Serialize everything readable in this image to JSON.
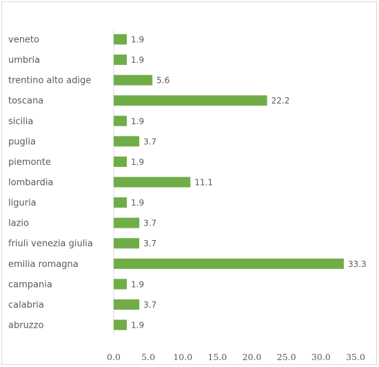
{
  "chart_data": {
    "type": "bar",
    "orientation": "horizontal",
    "title": "",
    "xlabel": "",
    "ylabel": "",
    "categories": [
      "veneto",
      "umbria",
      "trentino alto adige",
      "toscana",
      "sicilia",
      "puglia",
      "piemonte",
      "lombardia",
      "liguria",
      "lazio",
      "friuli venezia giulia",
      "emilia romagna",
      "campania",
      "calabria",
      "abruzzo"
    ],
    "values": [
      1.9,
      1.9,
      5.6,
      22.2,
      1.9,
      3.7,
      1.9,
      11.1,
      1.9,
      3.7,
      3.7,
      33.3,
      1.9,
      3.7,
      1.9
    ],
    "value_labels": [
      "1.9",
      "1.9",
      "5.6",
      "22.2",
      "1.9",
      "3.7",
      "1.9",
      "11.1",
      "1.9",
      "3.7",
      "3.7",
      "33.3",
      "1.9",
      "3.7",
      "1.9"
    ],
    "xlim": [
      0,
      35
    ],
    "xticks": [
      "0.0",
      "5.0",
      "10.0",
      "15.0",
      "20.0",
      "25.0",
      "30.0",
      "35.0"
    ],
    "grid": false,
    "legend": "none",
    "colors": {
      "bar": "#70ad47",
      "axis": "#d9d9d9",
      "text": "#595959"
    }
  }
}
